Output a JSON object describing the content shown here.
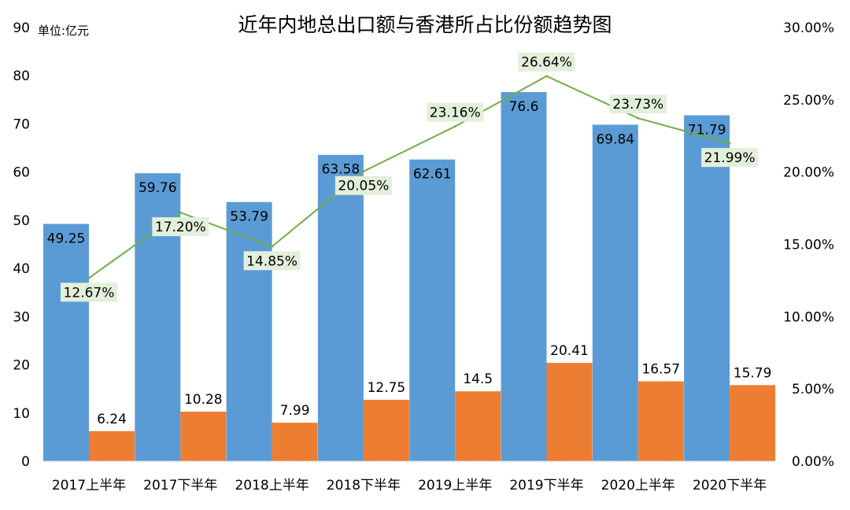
{
  "chart_data": {
    "type": "bar+line",
    "title": "近年内地总出口额与香港所占比份额趋势图",
    "unit_label": "单位:亿元",
    "categories": [
      "2017上半年",
      "2017下半年",
      "2018上半年",
      "2018下半年",
      "2019上半年",
      "2019下半年",
      "2020上半年",
      "2020下半年"
    ],
    "series": [
      {
        "type": "bar",
        "axis": "left",
        "color": "#5b9bd5",
        "values": [
          49.25,
          59.76,
          53.79,
          63.58,
          62.61,
          76.6,
          69.84,
          71.79
        ],
        "labels": [
          "49.25",
          "59.76",
          "53.79",
          "63.58",
          "62.61",
          "76.6",
          "69.84",
          "71.79"
        ]
      },
      {
        "type": "bar",
        "axis": "left",
        "color": "#ed7d31",
        "values": [
          6.24,
          10.28,
          7.99,
          12.75,
          14.5,
          20.41,
          16.57,
          15.79
        ],
        "labels": [
          "6.24",
          "10.28",
          "7.99",
          "12.75",
          "14.5",
          "20.41",
          "16.57",
          "15.79"
        ]
      },
      {
        "type": "line",
        "axis": "right",
        "color": "#70ad47",
        "values": [
          12.67,
          17.2,
          14.85,
          20.05,
          23.16,
          26.64,
          23.73,
          21.99
        ],
        "labels": [
          "12.67%",
          "17.20%",
          "14.85%",
          "20.05%",
          "23.16%",
          "26.64%",
          "23.73%",
          "21.99%"
        ]
      }
    ],
    "left_axis": {
      "ylim": [
        0,
        90
      ],
      "ticks": [
        "0",
        "10",
        "20",
        "30",
        "40",
        "50",
        "60",
        "70",
        "80",
        "90"
      ]
    },
    "right_axis": {
      "ylim": [
        0,
        30
      ],
      "ticks": [
        "0.00%",
        "5.00%",
        "10.00%",
        "15.00%",
        "20.00%",
        "25.00%",
        "30.00%"
      ]
    },
    "grid": false,
    "legend": "none"
  }
}
